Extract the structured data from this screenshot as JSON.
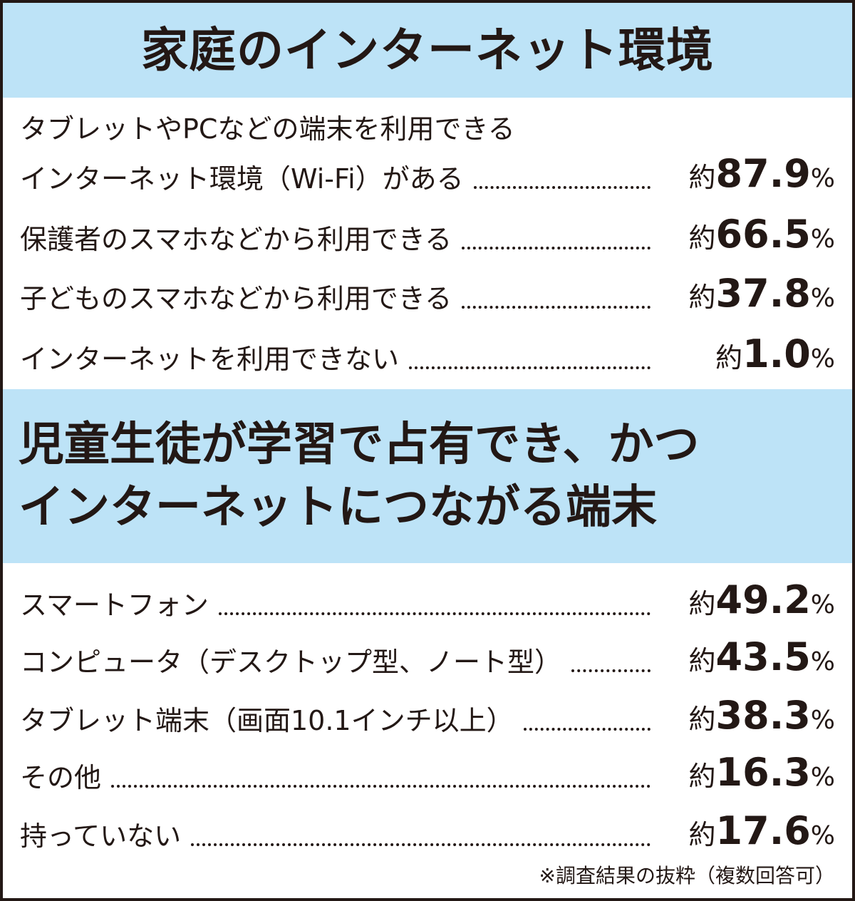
{
  "section1": {
    "title": "家庭のインターネット環境",
    "items": [
      {
        "label_line1": "タブレットやPCなどの端末を利用できる",
        "label": "インターネット環境（Wi-Fi）がある",
        "prefix": "約",
        "value": "87.9",
        "unit": "%"
      },
      {
        "label": "保護者のスマホなどから利用できる",
        "prefix": "約",
        "value": "66.5",
        "unit": "%"
      },
      {
        "label": "子どものスマホなどから利用できる",
        "prefix": "約",
        "value": "37.8",
        "unit": "%"
      },
      {
        "label": "インターネットを利用できない",
        "prefix": "約",
        "value": "1.0",
        "unit": "%"
      }
    ]
  },
  "section2": {
    "title_line1": "児童生徒が学習で占有でき、かつ",
    "title_line2": "インターネットにつながる端末",
    "items": [
      {
        "label": "スマートフォン",
        "prefix": "約",
        "value": "49.2",
        "unit": "%"
      },
      {
        "label": "コンピュータ（デスクトップ型、ノート型）",
        "prefix": "約",
        "value": "43.5",
        "unit": "%"
      },
      {
        "label": "タブレット端末（画面10.1インチ以上）",
        "prefix": "約",
        "value": "38.3",
        "unit": "%"
      },
      {
        "label": "その他",
        "prefix": "約",
        "value": "16.3",
        "unit": "%"
      },
      {
        "label": "持っていない",
        "prefix": "約",
        "value": "17.6",
        "unit": "%"
      }
    ]
  },
  "note": "※調査結果の抜粋（複数回答可）",
  "colors": {
    "header_bg": "#bde3f7",
    "text": "#231815"
  }
}
